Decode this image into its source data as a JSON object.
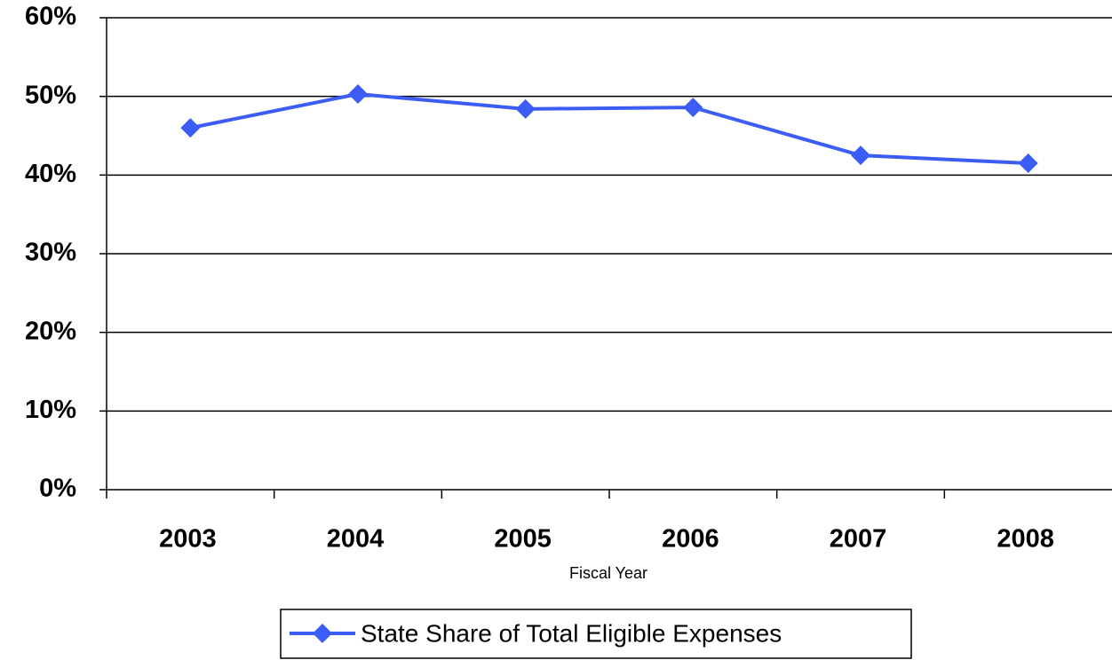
{
  "chart_data": {
    "type": "line",
    "categories": [
      "2003",
      "2004",
      "2005",
      "2006",
      "2007",
      "2008"
    ],
    "series": [
      {
        "name": "State Share of Total Eligible Expenses",
        "color": "#3b5cf5",
        "values": [
          46,
          50.3,
          48.4,
          48.6,
          42.5,
          41.5
        ]
      }
    ],
    "xlabel": "Fiscal Year",
    "ylim": [
      0,
      60
    ],
    "yticks": [
      {
        "value": 0,
        "label": "0%"
      },
      {
        "value": 10,
        "label": "10%"
      },
      {
        "value": 20,
        "label": "20%"
      },
      {
        "value": 30,
        "label": "30%"
      },
      {
        "value": 40,
        "label": "40%"
      },
      {
        "value": 50,
        "label": "50%"
      },
      {
        "value": 60,
        "label": "60%"
      }
    ],
    "grid": true,
    "legend": "bottom"
  }
}
